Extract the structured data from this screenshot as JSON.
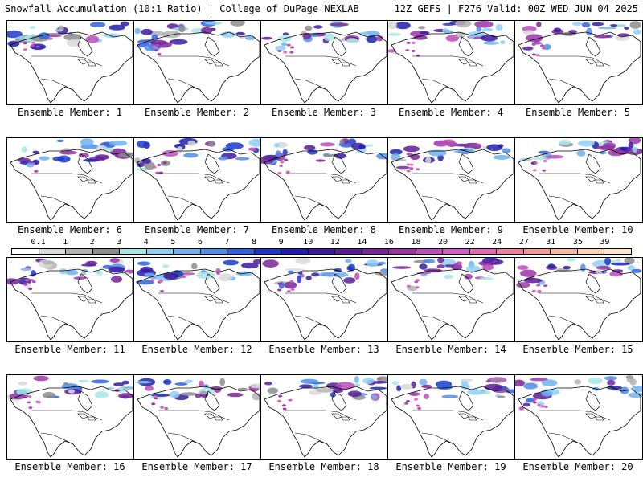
{
  "header": {
    "title_left": "Snowfall Accumulation (10:1 Ratio) | College of DuPage NEXLAB",
    "title_right": "12Z GEFS | F276 Valid: 00Z WED JUN 04 2025"
  },
  "colorbar": {
    "labels": [
      "0.1",
      "1",
      "2",
      "3",
      "4",
      "5",
      "6",
      "7",
      "8",
      "9",
      "10",
      "12",
      "14",
      "16",
      "18",
      "20",
      "22",
      "24",
      "27",
      "31",
      "35",
      "39"
    ],
    "colors": [
      "#ffffff",
      "#d9d9d9",
      "#b3b3b3",
      "#8c8c8c",
      "#a8e6e6",
      "#8fd0f5",
      "#6fb2ee",
      "#4f8ee6",
      "#2f62dc",
      "#1c38c8",
      "#1f1db0",
      "#3a1aa0",
      "#5a1c98",
      "#7a2598",
      "#9a35a8",
      "#b94bbb",
      "#d35cc4",
      "#e36ab0",
      "#ef7f9f",
      "#f49b9a",
      "#f8b9a4",
      "#fad2b6",
      "#fce6cf"
    ]
  },
  "panels": [
    {
      "label": "Ensemble Member: 1"
    },
    {
      "label": "Ensemble Member: 2"
    },
    {
      "label": "Ensemble Member: 3"
    },
    {
      "label": "Ensemble Member: 4"
    },
    {
      "label": "Ensemble Member: 5"
    },
    {
      "label": "Ensemble Member: 6"
    },
    {
      "label": "Ensemble Member: 7"
    },
    {
      "label": "Ensemble Member: 8"
    },
    {
      "label": "Ensemble Member: 9"
    },
    {
      "label": "Ensemble Member: 10"
    },
    {
      "label": "Ensemble Member: 11"
    },
    {
      "label": "Ensemble Member: 12"
    },
    {
      "label": "Ensemble Member: 13"
    },
    {
      "label": "Ensemble Member: 14"
    },
    {
      "label": "Ensemble Member: 15"
    },
    {
      "label": "Ensemble Member: 16"
    },
    {
      "label": "Ensemble Member: 17"
    },
    {
      "label": "Ensemble Member: 18"
    },
    {
      "label": "Ensemble Member: 19"
    },
    {
      "label": "Ensemble Member: 20"
    }
  ]
}
